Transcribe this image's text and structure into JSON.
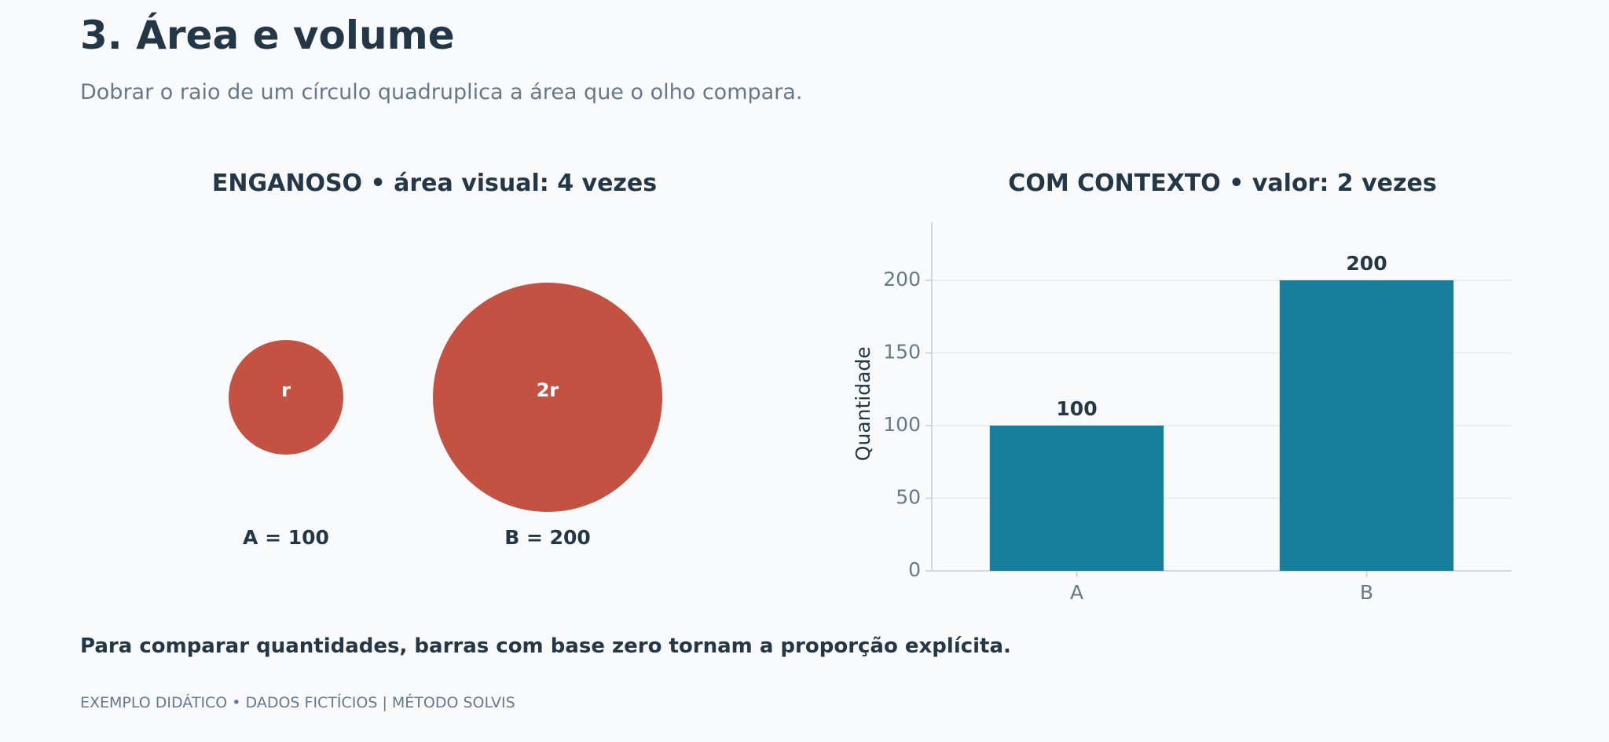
{
  "header": {
    "title": "3. Área e volume",
    "subtitle": "Dobrar o raio de um círculo quadruplica a área que o olho compara."
  },
  "left_panel": {
    "title": "ENGANOSO • área visual: 4 vezes",
    "circles": [
      {
        "inner_label": "r",
        "caption": "A = 100",
        "radius_multiple": 1
      },
      {
        "inner_label": "2r",
        "caption": "B = 200",
        "radius_multiple": 2
      }
    ],
    "circle_color": "#c45243"
  },
  "right_panel": {
    "title": "COM CONTEXTO • valor: 2 vezes"
  },
  "chart_data": {
    "type": "bar",
    "categories": [
      "A",
      "B"
    ],
    "values": [
      100,
      200
    ],
    "data_labels": [
      "100",
      "200"
    ],
    "ylabel": "Quantidade",
    "ylim": [
      0,
      240
    ],
    "yticks": [
      0,
      50,
      100,
      150,
      200
    ],
    "grid": true,
    "bar_color": "#177f9c"
  },
  "footer": {
    "note": "Para comparar quantidades, barras com base zero tornam a proporção explícita.",
    "credit": "EXEMPLO DIDÁTICO • DADOS FICTÍCIOS | MÉTODO SOLVIS"
  }
}
